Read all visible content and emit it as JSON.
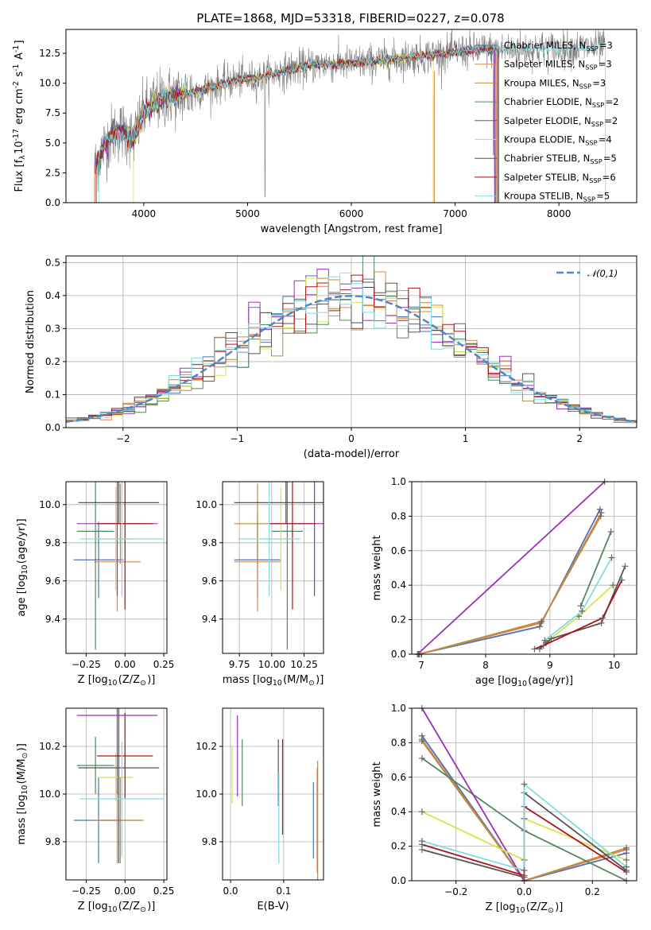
{
  "colors": [
    "#4c72b0",
    "#dd8452",
    "#c0883a",
    "#55865f",
    "#9b30b8",
    "#d8e24a",
    "#555555",
    "#b0101a",
    "#7fdde0"
  ],
  "chart_data": [
    {
      "id": "spectrum",
      "type": "line",
      "title": "PLATE=1868, MJD=53318, FIBERID=0227, z=0.078",
      "xlabel": "wavelength [Angstrom, rest frame]",
      "ylabel": "Flux [f$_\\lambda$10$^{-17}$ erg cm$^{-2}$ s$^{-1}$ A$^{-1}$]",
      "xlim": [
        3250,
        8750
      ],
      "ylim": [
        0,
        14.5
      ],
      "xticks": [
        "4000",
        "5000",
        "6000",
        "7000",
        "8000"
      ],
      "yticks": [
        "0.0",
        "2.5",
        "5.0",
        "7.5",
        "10.0",
        "12.5"
      ],
      "grid": false,
      "legend_position": "upper-right",
      "series": [
        {
          "name": "Chabrier MILES, N$_{SSP}$=3"
        },
        {
          "name": "Salpeter MILES, N$_{SSP}$=3"
        },
        {
          "name": "Kroupa MILES, N$_{SSP}$=3"
        },
        {
          "name": "Chabrier ELODIE, N$_{SSP}$=2"
        },
        {
          "name": "Salpeter ELODIE, N$_{SSP}$=2"
        },
        {
          "name": "Kroupa ELODIE, N$_{SSP}$=4"
        },
        {
          "name": "Chabrier STELIB, N$_{SSP}$=5"
        },
        {
          "name": "Salpeter STELIB, N$_{SSP}$=6"
        },
        {
          "name": "Kroupa STELIB, N$_{SSP}$=5"
        }
      ],
      "continuum": {
        "x": [
          3520,
          3600,
          3700,
          3800,
          3900,
          4000,
          4100,
          4200,
          4300,
          4500,
          4700,
          4900,
          5100,
          5300,
          5500,
          5700,
          5900,
          6100,
          6300,
          6500,
          6700,
          6900,
          7100,
          7300,
          7400,
          8000,
          8450
        ],
        "y": [
          2.8,
          4.5,
          5.8,
          6.0,
          5.3,
          7.6,
          8.3,
          8.8,
          8.9,
          9.3,
          9.8,
          10.3,
          10.4,
          10.9,
          11.3,
          11.6,
          11.6,
          11.7,
          11.9,
          12.1,
          12.3,
          12.5,
          12.7,
          12.8,
          12.8,
          12.9,
          13.0
        ]
      }
    },
    {
      "id": "residuals",
      "type": "histogram",
      "xlabel": "(data-model)/error",
      "ylabel": "Normed distribution",
      "xlim": [
        -2.5,
        2.5
      ],
      "ylim": [
        0,
        0.52
      ],
      "xticks": [
        "−2",
        "−1",
        "0",
        "1",
        "2"
      ],
      "yticks": [
        "0.0",
        "0.1",
        "0.2",
        "0.3",
        "0.4",
        "0.5"
      ],
      "grid": true,
      "bin_width": 0.1,
      "reference": {
        "name": "$\\mathcal{N}(0,1)$",
        "type": "gaussian",
        "mu": 0,
        "sigma": 1
      }
    },
    {
      "id": "age_vs_Z",
      "type": "errorbar",
      "xlabel": "Z [log$_{10}$(Z/Z$_\\odot$)]",
      "ylabel": "age  [log$_{10}$(age/yr)]",
      "xlim": [
        -0.38,
        0.27
      ],
      "ylim": [
        9.22,
        10.12
      ],
      "xticks": [
        "−0.25",
        "0.00",
        "0.25"
      ],
      "yticks": [
        "9.4",
        "9.6",
        "9.8",
        "10.0"
      ],
      "points": [
        {
          "x": -0.17,
          "y": 9.71,
          "xerr": 0.16,
          "yerr": 0.2
        },
        {
          "x": -0.05,
          "y": 9.7,
          "xerr": 0.15,
          "yerr": 0.26
        },
        {
          "x": -0.03,
          "y": 9.9,
          "xerr": 0.15,
          "yerr": 0.21
        },
        {
          "x": -0.19,
          "y": 9.86,
          "xerr": 0.12,
          "yerr": 0.62
        },
        {
          "x": -0.05,
          "y": 9.9,
          "xerr": 0.26,
          "yerr": 0.38
        },
        {
          "x": -0.06,
          "y": 9.82,
          "xerr": 0.11,
          "yerr": 0.27
        },
        {
          "x": -0.04,
          "y": 10.01,
          "xerr": 0.26,
          "yerr": 0.11
        },
        {
          "x": 0.0,
          "y": 9.9,
          "xerr": 0.18,
          "yerr": 0.45
        },
        {
          "x": -0.02,
          "y": 9.82,
          "xerr": 0.27,
          "yerr": 0.3
        }
      ]
    },
    {
      "id": "age_vs_mass",
      "type": "errorbar",
      "xlabel": "mass [log$_{10}$(M/M$_\\odot$)]",
      "ylabel": "",
      "xlim": [
        9.62,
        10.4
      ],
      "ylim": [
        9.22,
        10.12
      ],
      "xticks": [
        "9.75",
        "10.00",
        "10.25"
      ],
      "yticks": [
        "9.4",
        "9.6",
        "9.8",
        "10.0"
      ],
      "points": [
        {
          "x": 9.89,
          "y": 9.71,
          "xerr": 0.18,
          "yerr": 0.2
        },
        {
          "x": 9.89,
          "y": 9.7,
          "xerr": 0.18,
          "yerr": 0.26
        },
        {
          "x": 9.89,
          "y": 9.9,
          "xerr": 0.18,
          "yerr": 0.21
        },
        {
          "x": 10.12,
          "y": 9.86,
          "xerr": 0.12,
          "yerr": 0.62
        },
        {
          "x": 10.33,
          "y": 9.9,
          "xerr": 0.33,
          "yerr": 0.38
        },
        {
          "x": 10.07,
          "y": 9.82,
          "xerr": 0.1,
          "yerr": 0.27
        },
        {
          "x": 10.11,
          "y": 10.01,
          "xerr": 0.4,
          "yerr": 0.11
        },
        {
          "x": 10.16,
          "y": 9.9,
          "xerr": 0.18,
          "yerr": 0.45
        },
        {
          "x": 9.98,
          "y": 9.82,
          "xerr": 0.24,
          "yerr": 0.3
        }
      ]
    },
    {
      "id": "weight_vs_age",
      "type": "line",
      "xlabel": "age  [log$_{10}$(age/yr)]",
      "ylabel": "mass weight",
      "xlim": [
        6.85,
        10.35
      ],
      "ylim": [
        0,
        1.0
      ],
      "xticks": [
        "7",
        "8",
        "9",
        "10"
      ],
      "yticks": [
        "0.0",
        "0.2",
        "0.4",
        "0.6",
        "0.8",
        "1.0"
      ],
      "grid": true,
      "series": [
        {
          "x": [
            6.95,
            8.84,
            9.78
          ],
          "y": [
            0.0,
            0.16,
            0.84
          ]
        },
        {
          "x": [
            6.96,
            8.86,
            9.8
          ],
          "y": [
            0.0,
            0.18,
            0.82
          ]
        },
        {
          "x": [
            6.97,
            8.87,
            9.79
          ],
          "y": [
            0.0,
            0.19,
            0.8
          ]
        },
        {
          "x": [
            9.48,
            9.95
          ],
          "y": [
            0.28,
            0.71
          ]
        },
        {
          "x": [
            6.94,
            9.85
          ],
          "y": [
            0.0,
            1.0
          ]
        },
        {
          "x": [
            8.94,
            9.45,
            9.98
          ],
          "y": [
            0.07,
            0.22,
            0.4
          ]
        },
        {
          "x": [
            8.84,
            9.02,
            9.8,
            10.17
          ],
          "y": [
            0.03,
            0.09,
            0.18,
            0.51
          ]
        },
        {
          "x": [
            8.76,
            8.9,
            9.82,
            10.12
          ],
          "y": [
            0.03,
            0.05,
            0.21,
            0.43
          ]
        },
        {
          "x": [
            8.92,
            9.5,
            9.96
          ],
          "y": [
            0.08,
            0.25,
            0.56
          ]
        }
      ]
    },
    {
      "id": "mass_vs_Z",
      "type": "errorbar",
      "xlabel": "Z [log$_{10}$(Z/Z$_\\odot$)]",
      "ylabel": "mass [log$_{10}$(M/M$_\\odot$)]",
      "xlim": [
        -0.38,
        0.27
      ],
      "ylim": [
        9.64,
        10.36
      ],
      "xticks": [
        "−0.25",
        "0.00",
        "0.25"
      ],
      "yticks": [
        "9.8",
        "10.0",
        "10.2"
      ],
      "points": [
        {
          "x": -0.17,
          "y": 9.89,
          "xerr": 0.16,
          "yerr": 0.18
        },
        {
          "x": -0.05,
          "y": 9.89,
          "xerr": 0.15,
          "yerr": 0.18
        },
        {
          "x": -0.03,
          "y": 9.89,
          "xerr": 0.15,
          "yerr": 0.18
        },
        {
          "x": -0.19,
          "y": 10.12,
          "xerr": 0.12,
          "yerr": 0.12
        },
        {
          "x": -0.05,
          "y": 10.33,
          "xerr": 0.26,
          "yerr": 0.33
        },
        {
          "x": -0.06,
          "y": 10.07,
          "xerr": 0.11,
          "yerr": 0.1
        },
        {
          "x": -0.04,
          "y": 10.11,
          "xerr": 0.26,
          "yerr": 0.4
        },
        {
          "x": 0.0,
          "y": 10.16,
          "xerr": 0.18,
          "yerr": 0.18
        },
        {
          "x": -0.02,
          "y": 9.98,
          "xerr": 0.27,
          "yerr": 0.24
        }
      ]
    },
    {
      "id": "mass_vs_ebv",
      "type": "errorbar",
      "xlabel": "E(B-V)",
      "ylabel": "",
      "xlim": [
        -0.015,
        0.175
      ],
      "ylim": [
        9.64,
        10.36
      ],
      "xticks": [
        "0.0",
        "0.1"
      ],
      "yticks": [
        "9.8",
        "10.0",
        "10.2"
      ],
      "points": [
        {
          "x": 0.156,
          "y": 9.89,
          "yerr": 0.16
        },
        {
          "x": 0.163,
          "y": 9.89,
          "yerr": 0.22
        },
        {
          "x": 0.164,
          "y": 9.89,
          "yerr": 0.25
        },
        {
          "x": 0.022,
          "y": 10.09,
          "yerr": 0.14
        },
        {
          "x": 0.013,
          "y": 10.16,
          "yerr": 0.17
        },
        {
          "x": 0.003,
          "y": 10.08,
          "yerr": 0.12
        },
        {
          "x": 0.09,
          "y": 10.09,
          "yerr": 0.14
        },
        {
          "x": 0.098,
          "y": 10.03,
          "yerr": 0.2
        },
        {
          "x": 0.091,
          "y": 9.9,
          "yerr": 0.19
        }
      ]
    },
    {
      "id": "weight_vs_Z",
      "type": "line",
      "xlabel": "Z [log$_{10}$(Z/Z$_\\odot$)]",
      "ylabel": "mass weight",
      "xlim": [
        -0.33,
        0.33
      ],
      "ylim": [
        0,
        1.0
      ],
      "xticks": [
        "−0.2",
        "0.0",
        "0.2"
      ],
      "yticks": [
        "0.0",
        "0.2",
        "0.4",
        "0.6",
        "0.8",
        "1.0"
      ],
      "grid": true,
      "series": [
        {
          "x": [
            -0.3,
            0.0,
            0.3
          ],
          "y": [
            0.84,
            0.0,
            0.16
          ]
        },
        {
          "x": [
            -0.3,
            0.0,
            0.3
          ],
          "y": [
            0.82,
            0.0,
            0.18
          ]
        },
        {
          "x": [
            -0.3,
            0.0,
            0.3
          ],
          "y": [
            0.81,
            0.0,
            0.19
          ]
        },
        {
          "x": [
            -0.3,
            0.0,
            0.3
          ],
          "y": [
            0.71,
            0.29,
            0.0
          ]
        },
        {
          "x": [
            -0.3,
            0.0
          ],
          "y": [
            1.0,
            0.0
          ]
        },
        {
          "x": [
            -0.3,
            0.0,
            0.0,
            0.3
          ],
          "y": [
            0.4,
            0.12,
            0.36,
            0.12
          ]
        },
        {
          "x": [
            -0.3,
            0.0,
            0.0,
            0.3
          ],
          "y": [
            0.18,
            0.02,
            0.51,
            0.06
          ]
        },
        {
          "x": [
            -0.3,
            0.0,
            0.0,
            0.3
          ],
          "y": [
            0.21,
            0.03,
            0.43,
            0.05
          ]
        },
        {
          "x": [
            -0.3,
            0.0,
            0.0,
            0.3
          ],
          "y": [
            0.23,
            0.06,
            0.56,
            0.08
          ]
        }
      ]
    }
  ]
}
